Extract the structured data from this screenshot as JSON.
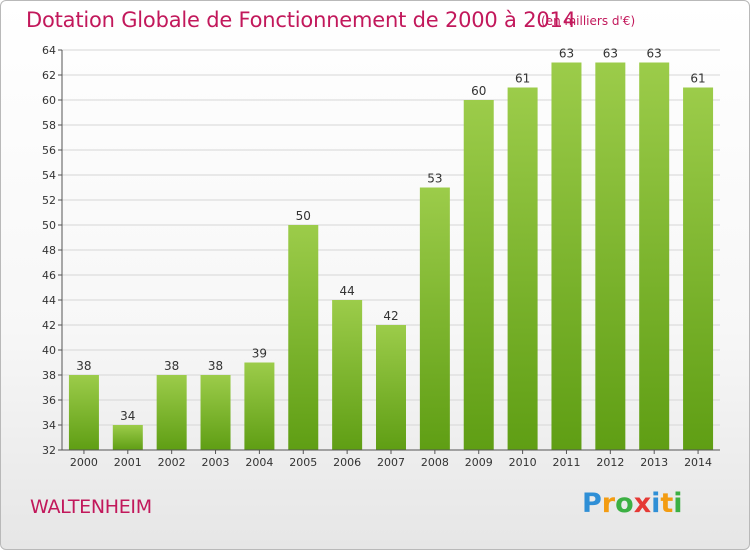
{
  "chart_data": {
    "type": "bar",
    "title": "Dotation Globale de Fonctionnement de 2000 à 2014",
    "subtitle": "(en milliers d'€)",
    "categories": [
      "2000",
      "2001",
      "2002",
      "2003",
      "2004",
      "2005",
      "2006",
      "2007",
      "2008",
      "2009",
      "2010",
      "2011",
      "2012",
      "2013",
      "2014"
    ],
    "values": [
      38,
      34,
      38,
      38,
      39,
      50,
      44,
      42,
      53,
      60,
      61,
      63,
      63,
      63,
      61
    ],
    "ylim": [
      32,
      64
    ],
    "yticks": [
      32,
      34,
      36,
      38,
      40,
      42,
      44,
      46,
      48,
      50,
      52,
      54,
      56,
      58,
      60,
      62,
      64
    ],
    "grid": true,
    "bar_color_light": "#9ccc4a",
    "bar_color_dark": "#5f9e14"
  },
  "commune": "WALTENHEIM",
  "brand": {
    "letters": [
      "P",
      "r",
      "o",
      "x",
      "i",
      "t",
      "i"
    ],
    "colors": [
      "#2f8fd6",
      "#f39c12",
      "#3cb043",
      "#e53935",
      "#2f8fd6",
      "#f39c12",
      "#3cb043"
    ]
  },
  "colors": {
    "title": "#c2185b",
    "axis": "#555555",
    "grid": "#d6d6d6"
  }
}
